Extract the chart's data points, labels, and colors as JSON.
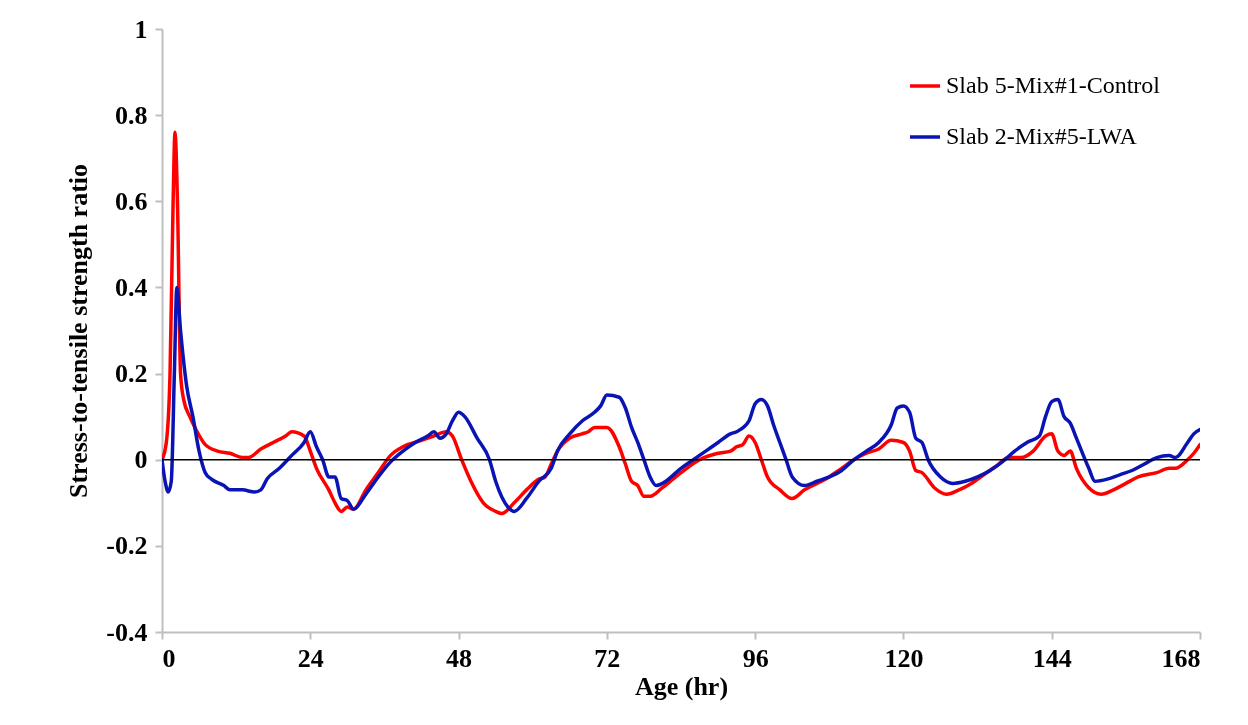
{
  "chart_data": {
    "type": "line",
    "xlabel": "Age (hr)",
    "ylabel": "Stress-to-tensile strength ratio",
    "xlim": [
      0,
      168
    ],
    "xticks": [
      0,
      24,
      48,
      72,
      96,
      120,
      144,
      168
    ],
    "ylim": [
      -0.4,
      1
    ],
    "yticks": [
      -0.4,
      -0.2,
      0,
      0.2,
      0.4,
      0.6,
      0.8,
      1
    ],
    "grid": false,
    "legend": "top right",
    "line_style": "solid",
    "marker": "none",
    "ref_lines": [
      {
        "axis": "y",
        "value": 0,
        "color": "#000000"
      }
    ],
    "series": [
      {
        "name": "Slab 5-Mix#1-Control",
        "color": "#ff0000",
        "x": [
          0,
          0.7,
          1.3,
          1.8,
          2.1,
          2.5,
          3,
          3.5,
          4.5,
          5.5,
          7,
          9,
          11,
          13,
          14,
          16,
          18,
          20,
          21,
          23,
          24,
          25,
          27,
          28,
          29,
          30,
          31,
          33,
          35,
          37,
          39,
          42,
          44,
          46,
          47,
          48.5,
          50,
          52,
          54,
          55,
          57,
          59,
          61,
          62,
          63,
          64,
          66,
          68,
          69,
          70,
          72,
          74,
          75,
          76,
          77,
          78,
          79,
          81,
          84,
          87,
          90,
          92,
          93,
          94,
          95,
          96,
          97,
          98,
          100,
          102,
          104,
          106,
          108,
          110,
          112,
          114,
          116,
          118,
          120,
          121,
          122,
          123,
          125,
          127,
          129,
          131,
          133,
          135,
          137,
          139,
          141,
          143,
          144,
          145,
          146,
          147,
          148,
          150,
          152,
          154,
          156,
          158,
          161,
          163,
          164,
          166,
          167,
          168
        ],
        "values": [
          0,
          0.04,
          0.2,
          0.6,
          0.76,
          0.6,
          0.2,
          0.14,
          0.1,
          0.07,
          0.035,
          0.02,
          0.015,
          0.005,
          0.005,
          0.025,
          0.04,
          0.055,
          0.065,
          0.055,
          0.02,
          -0.02,
          -0.07,
          -0.1,
          -0.12,
          -0.11,
          -0.115,
          -0.07,
          -0.03,
          0.01,
          0.03,
          0.045,
          0.055,
          0.065,
          0.055,
          0,
          -0.05,
          -0.1,
          -0.12,
          -0.125,
          -0.1,
          -0.07,
          -0.045,
          -0.04,
          -0.01,
          0.02,
          0.05,
          0.06,
          0.065,
          0.075,
          0.075,
          0.03,
          -0.01,
          -0.05,
          -0.06,
          -0.085,
          -0.085,
          -0.065,
          -0.03,
          0,
          0.015,
          0.02,
          0.03,
          0.035,
          0.055,
          0.04,
          0,
          -0.04,
          -0.07,
          -0.09,
          -0.07,
          -0.055,
          -0.04,
          -0.02,
          0,
          0.015,
          0.025,
          0.045,
          0.04,
          0.02,
          -0.025,
          -0.03,
          -0.065,
          -0.08,
          -0.07,
          -0.055,
          -0.035,
          -0.015,
          0.005,
          0.005,
          0.02,
          0.055,
          0.06,
          0.02,
          0.01,
          0.02,
          -0.02,
          -0.065,
          -0.08,
          -0.07,
          -0.055,
          -0.04,
          -0.03,
          -0.02,
          -0.02,
          0,
          0.015,
          0.035
        ]
      },
      {
        "name": "Slab 2-Mix#5-LWA",
        "color": "#0a14b4",
        "x": [
          0,
          0.5,
          1,
          1.5,
          2,
          2.4,
          3,
          4,
          5,
          6,
          7,
          8,
          10,
          11,
          13,
          15,
          16,
          17,
          19,
          21,
          23,
          24,
          25,
          26,
          27,
          28,
          29,
          30,
          31,
          33,
          35,
          37,
          39,
          41,
          43,
          44,
          45,
          46,
          47,
          48,
          49,
          51,
          53,
          54,
          56,
          57,
          59,
          61,
          63,
          64,
          66,
          68,
          70,
          71,
          72,
          74,
          75,
          76,
          77,
          78,
          79,
          80,
          81,
          84,
          86,
          88,
          90,
          92,
          93,
          95,
          96,
          97,
          98,
          99,
          100,
          101,
          102,
          104,
          106,
          108,
          110,
          112,
          114,
          116,
          118,
          119,
          120,
          121,
          122,
          123,
          124,
          126,
          128,
          130,
          132,
          134,
          136,
          138,
          140,
          142,
          143,
          144,
          145,
          146,
          147,
          148,
          150,
          151,
          153,
          155,
          157,
          159,
          161,
          163,
          164,
          166,
          167,
          168
        ],
        "values": [
          0,
          -0.05,
          -0.075,
          -0.05,
          0.2,
          0.4,
          0.3,
          0.17,
          0.1,
          0.02,
          -0.03,
          -0.045,
          -0.06,
          -0.07,
          -0.07,
          -0.075,
          -0.07,
          -0.045,
          -0.02,
          0.01,
          0.04,
          0.065,
          0.03,
          0,
          -0.04,
          -0.04,
          -0.09,
          -0.095,
          -0.115,
          -0.08,
          -0.04,
          -0.005,
          0.02,
          0.04,
          0.055,
          0.065,
          0.05,
          0.06,
          0.09,
          0.11,
          0.1,
          0.05,
          0,
          -0.05,
          -0.11,
          -0.12,
          -0.09,
          -0.05,
          -0.02,
          0.02,
          0.06,
          0.09,
          0.11,
          0.125,
          0.15,
          0.145,
          0.12,
          0.075,
          0.04,
          0,
          -0.04,
          -0.06,
          -0.055,
          -0.02,
          0,
          0.02,
          0.04,
          0.06,
          0.065,
          0.09,
          0.13,
          0.14,
          0.125,
          0.08,
          0.04,
          0,
          -0.04,
          -0.06,
          -0.05,
          -0.04,
          -0.025,
          0,
          0.02,
          0.04,
          0.08,
          0.12,
          0.125,
          0.11,
          0.05,
          0.04,
          0,
          -0.04,
          -0.055,
          -0.05,
          -0.04,
          -0.025,
          -0.005,
          0.02,
          0.04,
          0.055,
          0.1,
          0.135,
          0.14,
          0.1,
          0.085,
          0.05,
          -0.02,
          -0.05,
          -0.045,
          -0.035,
          -0.025,
          -0.01,
          0.005,
          0.01,
          0.005,
          0.04,
          0.06,
          0.07
        ]
      }
    ]
  }
}
